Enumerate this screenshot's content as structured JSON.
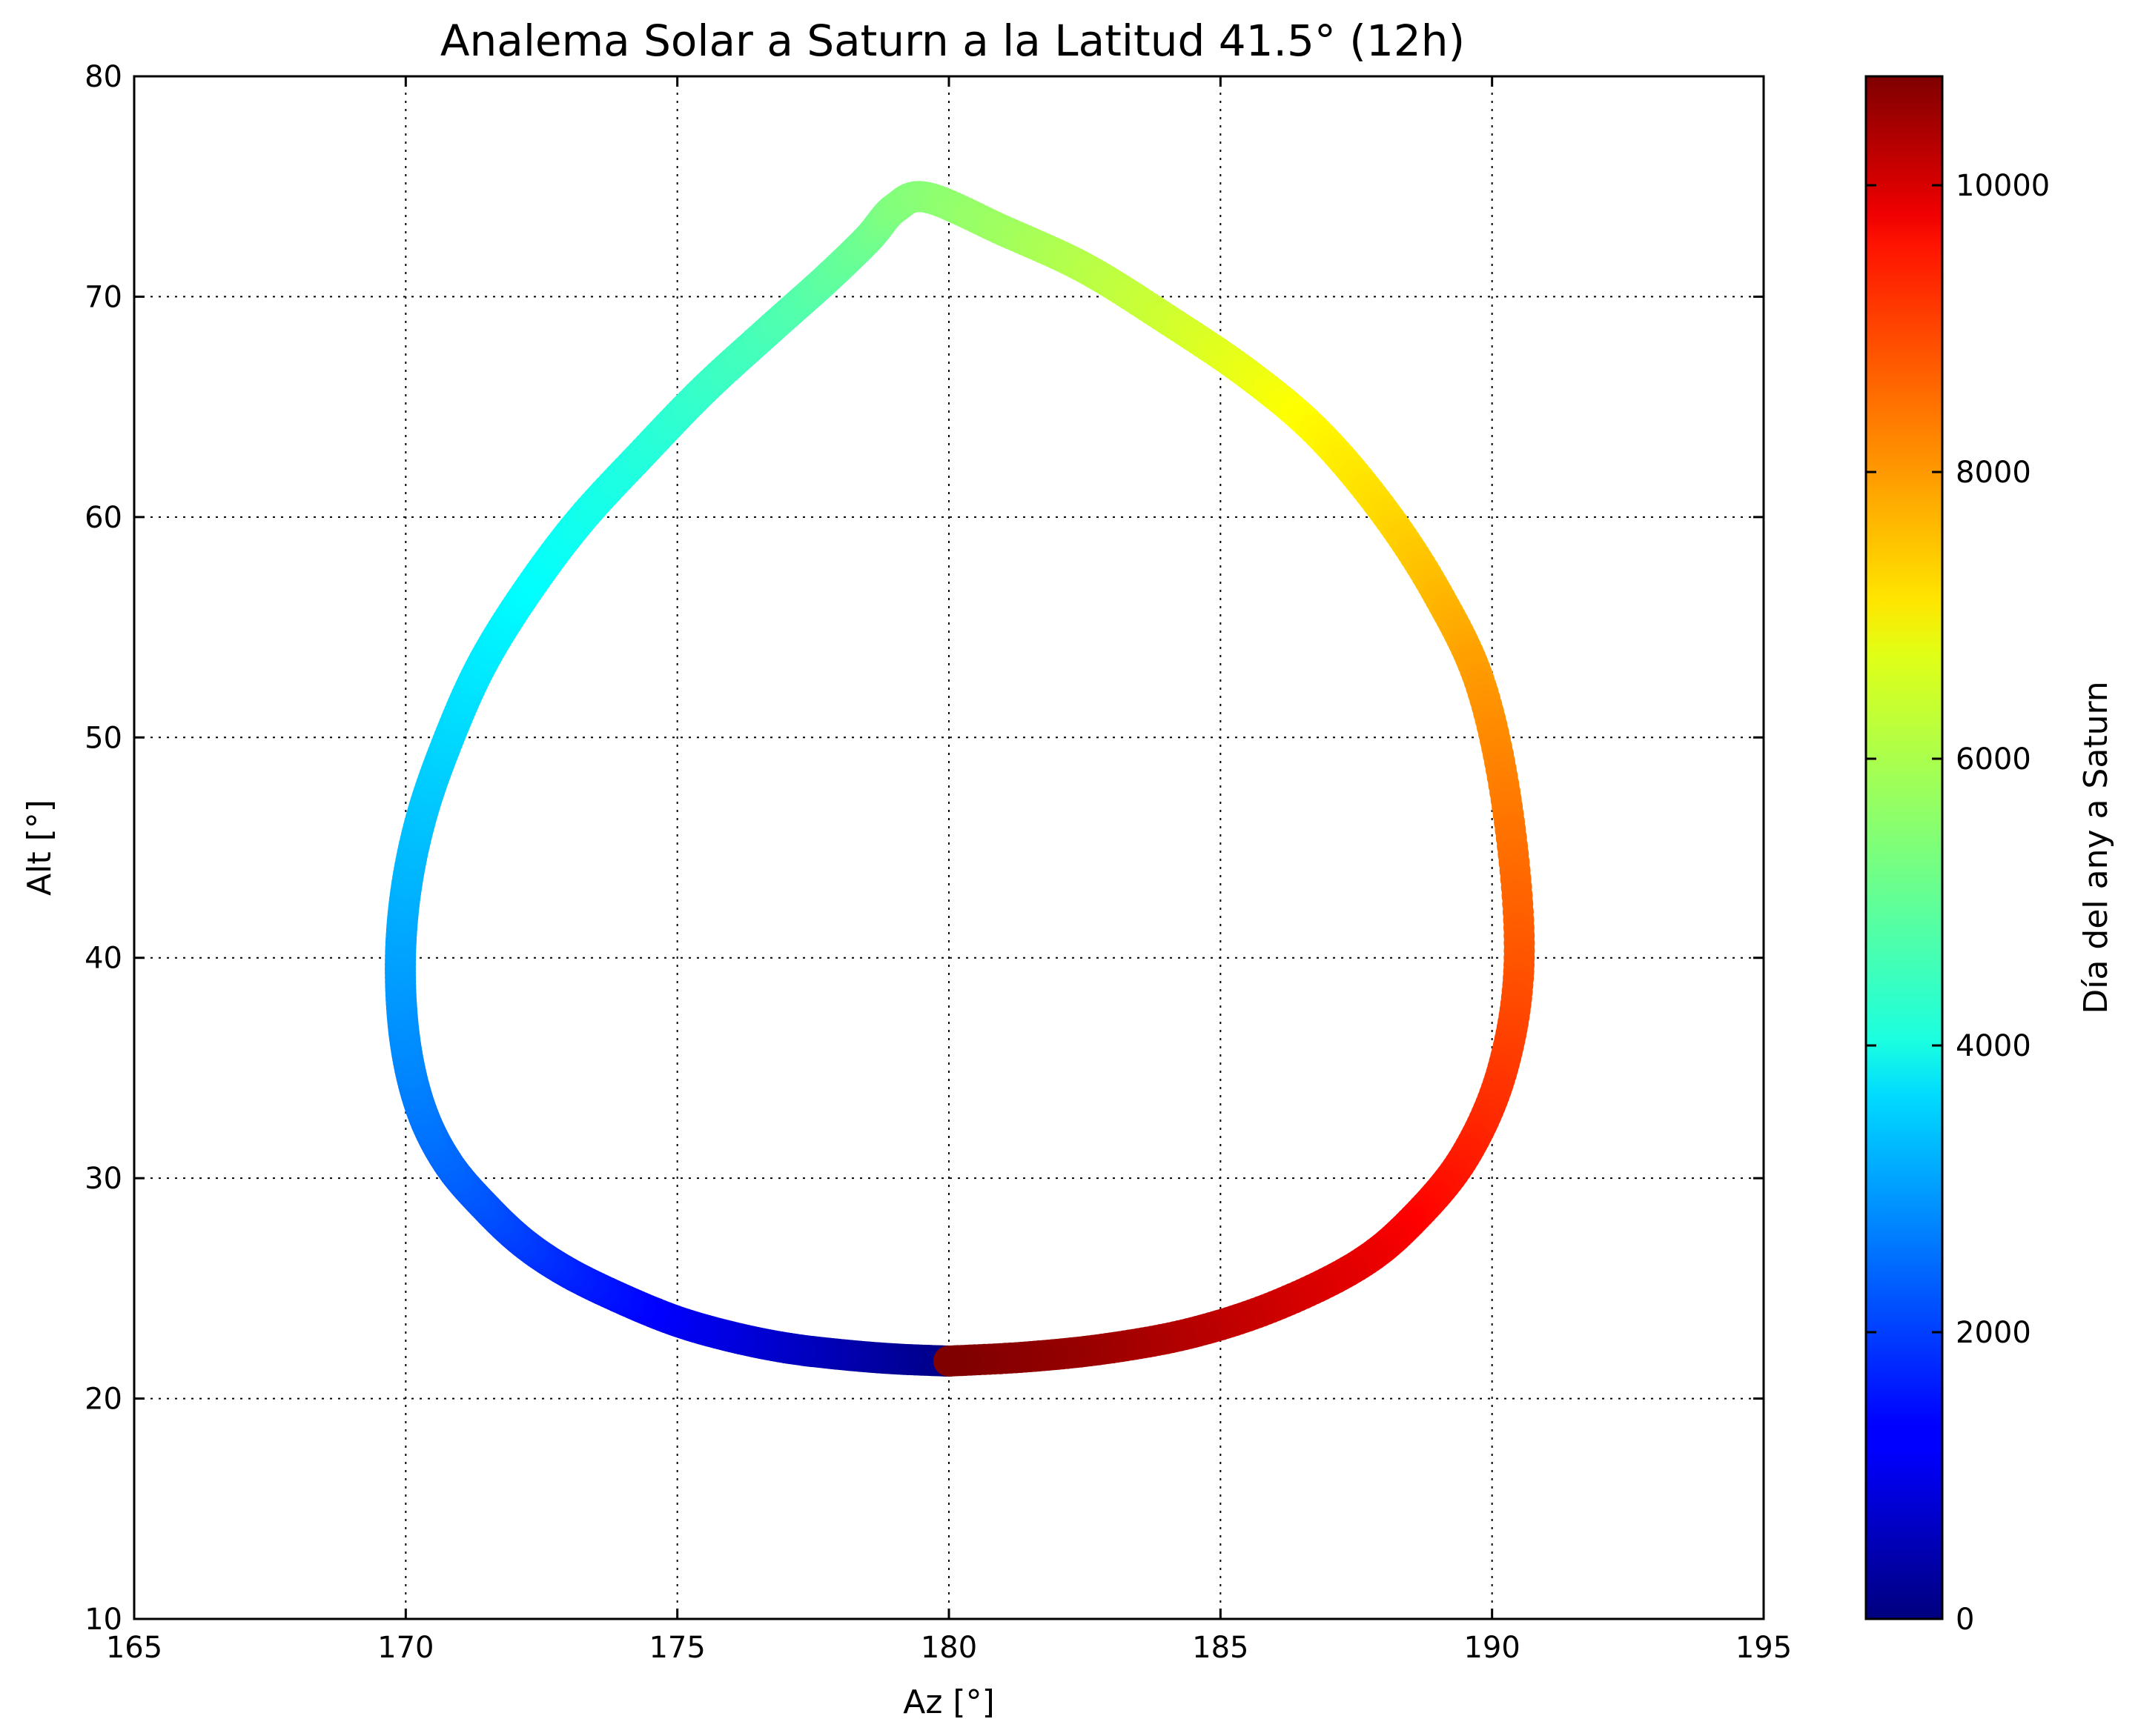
{
  "chart_data": {
    "type": "scatter",
    "title": "Analema Solar a Saturn a la Latitud 41.5° (12h)",
    "xlabel": "Az [°]",
    "ylabel": "Alt [°]",
    "xlim": [
      165,
      195
    ],
    "ylim": [
      10,
      80
    ],
    "xticks": [
      "165",
      "170",
      "175",
      "180",
      "185",
      "190",
      "195"
    ],
    "yticks": [
      "10",
      "20",
      "30",
      "40",
      "50",
      "60",
      "70",
      "80"
    ],
    "grid": true,
    "colormap": "jet",
    "colorbar": {
      "label": "Día del any a Saturn",
      "range": [
        0,
        10760
      ],
      "ticks": [
        "0",
        "2000",
        "4000",
        "6000",
        "8000",
        "10000"
      ]
    },
    "series": [
      {
        "x": [
          180.0,
          179.0,
          178.0,
          177.0,
          176.0,
          175.0,
          174.0,
          173.0,
          172.2,
          171.5,
          170.8,
          170.3,
          170.0,
          169.9,
          170.0,
          170.3,
          170.8,
          171.4,
          172.2,
          173.2,
          174.4,
          175.5,
          176.7,
          177.7,
          178.5,
          179.0,
          179.6,
          181.0,
          182.5,
          184.0,
          185.5,
          186.8,
          188.0,
          189.0,
          189.8,
          190.3,
          190.5,
          190.2,
          189.5,
          188.5,
          187.5,
          186.0,
          184.5,
          183.0,
          181.5,
          180.0
        ],
        "y": [
          21.7,
          21.8,
          22.0,
          22.3,
          22.8,
          23.5,
          24.5,
          25.7,
          27.0,
          28.6,
          30.6,
          33.0,
          36.0,
          39.5,
          43.0,
          46.5,
          50.0,
          53.3,
          56.5,
          59.8,
          63.0,
          65.8,
          68.5,
          70.7,
          72.6,
          74.0,
          74.5,
          73.0,
          71.3,
          69.0,
          66.5,
          63.8,
          60.3,
          56.5,
          52.3,
          46.5,
          40.0,
          35.0,
          31.0,
          28.0,
          26.0,
          24.2,
          23.0,
          22.3,
          21.9,
          21.7
        ],
        "day": [
          0,
          240,
          480,
          720,
          960,
          1200,
          1440,
          1680,
          1920,
          2160,
          2400,
          2600,
          2800,
          3000,
          3200,
          3400,
          3600,
          3800,
          4000,
          4200,
          4400,
          4600,
          4800,
          5000,
          5200,
          5380,
          5480,
          5700,
          5950,
          6200,
          6500,
          6800,
          7100,
          7450,
          7800,
          8150,
          8500,
          8800,
          9100,
          9400,
          9650,
          9900,
          10150,
          10400,
          10600,
          10760
        ]
      }
    ]
  }
}
